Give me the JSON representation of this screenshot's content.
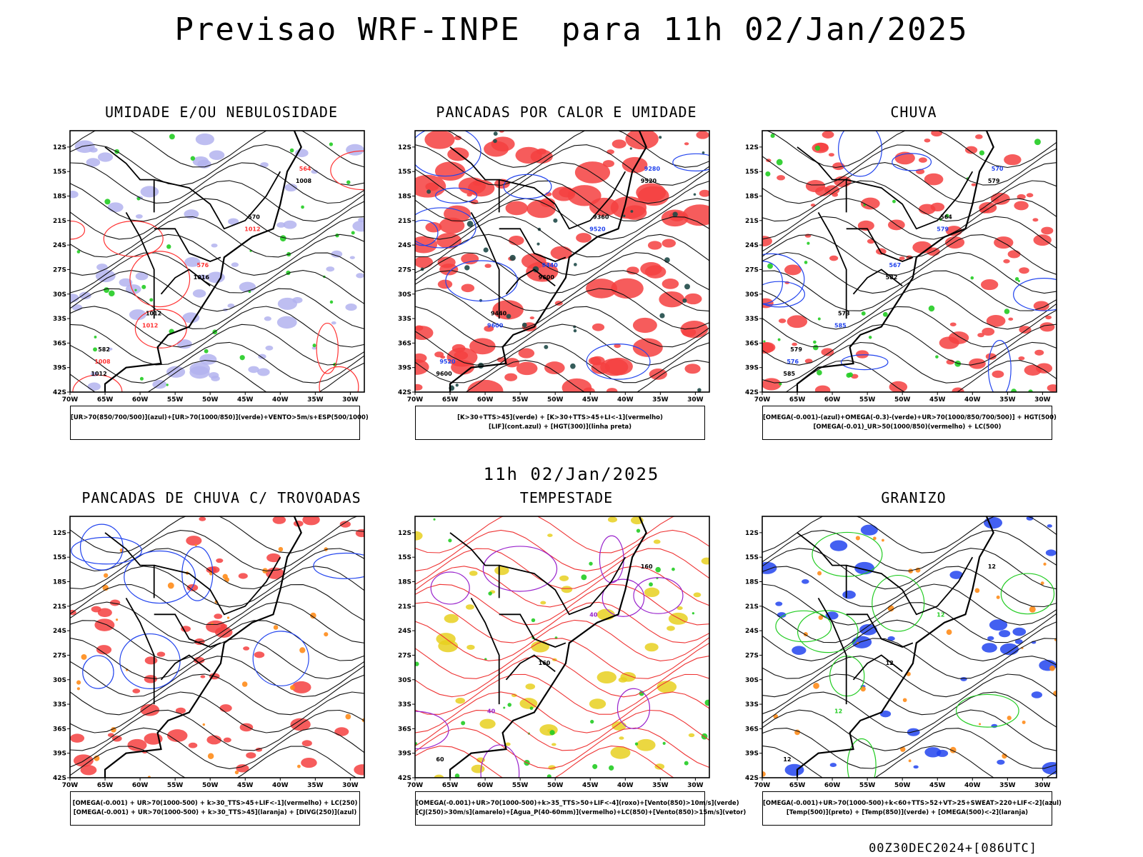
{
  "header": {
    "title": "Previsao WRF-INPE  para 11h 02/Jan/2025"
  },
  "middle": {
    "title": "11h 02/Jan/2025"
  },
  "footer": {
    "run_info": "00Z30DEC2024+[086UTC]"
  },
  "axes": {
    "lat_ticks": [
      "12S",
      "15S",
      "18S",
      "21S",
      "24S",
      "27S",
      "30S",
      "33S",
      "36S",
      "39S",
      "42S"
    ],
    "lon_ticks": [
      "70W",
      "65W",
      "60W",
      "55W",
      "50W",
      "45W",
      "40W",
      "35W",
      "30W"
    ]
  },
  "chart_data": [
    {
      "type": "map",
      "title": "UMIDADE E/OU NEBULOSIDADE",
      "xlim": [
        -70,
        -28
      ],
      "ylim": [
        -42,
        -10
      ],
      "legend": [
        "[UR>70(850/700/500)](azul)+[UR>70(1000/850)](verde)+VENTO>5m/s+ESP(500/1000)"
      ],
      "contour_labels": [
        "1012",
        "1012",
        "1016",
        "1012",
        "1008",
        "1008",
        "1012",
        "576",
        "570",
        "564",
        "582"
      ],
      "colors": {
        "fill": "#b3b3ee",
        "line_primary": "#111111",
        "line_secondary": "#ff3333",
        "accent": "#22cc22"
      }
    },
    {
      "type": "map",
      "title": "PANCADAS POR CALOR E UMIDADE",
      "xlim": [
        -70,
        -28
      ],
      "ylim": [
        -42,
        -10
      ],
      "legend": [
        "[K>30+TTS>45](verde) + [K>30+TTS>45+LI<-1](vermelho)",
        "[LIF](cont.azul) + [HGT(300)](linha preta)"
      ],
      "contour_labels": [
        "9600",
        "9600",
        "9600",
        "9520",
        "9520",
        "9520",
        "9440",
        "9440",
        "9360",
        "9280"
      ],
      "colors": {
        "fill": "#f44040",
        "line_primary": "#111111",
        "line_secondary": "#2244ee",
        "accent": "#1f4a48"
      }
    },
    {
      "type": "map",
      "title": "CHUVA",
      "xlim": [
        -70,
        -28
      ],
      "ylim": [
        -42,
        -10
      ],
      "legend": [
        "[OMEGA(-0.001)-(azul)+OMEGA(-0.3)-(verde)+UR>70(1000/850/700/500)] + HGT(500)",
        "[OMEGA(-0.01)_UR>50(1000/850)(vermelho) + LC(500)"
      ],
      "contour_labels": [
        "585",
        "585",
        "582",
        "579",
        "579",
        "576",
        "573",
        "567",
        "564",
        "570",
        "579"
      ],
      "colors": {
        "fill": "#f44040",
        "line_primary": "#111111",
        "line_secondary": "#2244ee",
        "accent": "#22cc22"
      }
    },
    {
      "type": "map",
      "title": "PANCADAS DE CHUVA C/ TROVOADAS",
      "xlim": [
        -70,
        -28
      ],
      "ylim": [
        -42,
        -10
      ],
      "legend": [
        "[OMEGA(-0.001) + UR>70(1000-500) + k>30_TTS>45+LIF<-1](vermelho) + LC(250)",
        "[OMEGA(-0.001) + UR>70(1000-500) + k>30_TTS>45](laranja) + [DIVG(250)](azul)"
      ],
      "contour_labels": [],
      "colors": {
        "fill": "#f44040",
        "line_primary": "#111111",
        "line_secondary": "#2244ee",
        "accent": "#ff8c1a"
      }
    },
    {
      "type": "map",
      "title": "TEMPESTADE",
      "xlim": [
        -70,
        -28
      ],
      "ylim": [
        -42,
        -10
      ],
      "legend": [
        "[OMEGA(-0.001)+UR>70(1000-500)+k>35_TTS>50+LIF<-4](roxo)+[Vento(850)>10m/s](verde)",
        "[CJ(250)>30m/s](amarelo)+[Agua_P(40-60mm)](vermelho)+LC(850)+[Vento(850)>15m/s](vetor)"
      ],
      "contour_labels": [
        "60",
        "40",
        "160",
        "40",
        "160"
      ],
      "colors": {
        "fill": "#e8d020",
        "line_primary": "#ee3333",
        "line_secondary": "#9922cc",
        "accent": "#22cc22"
      }
    },
    {
      "type": "map",
      "title": "GRANIZO",
      "xlim": [
        -70,
        -28
      ],
      "ylim": [
        -42,
        -10
      ],
      "legend": [
        "[OMEGA(-0.001)+UR>70(1000-500)+k<60+TTS>52+VT>25+SWEAT>220+LIF<-2](azul)",
        "[Temp(500)](preto) + [Temp(850)](verde) + [OMEGA(500)<-2](laranja)"
      ],
      "contour_labels": [
        "12",
        "12",
        "12",
        "12",
        "12"
      ],
      "colors": {
        "fill": "#2244ee",
        "line_primary": "#111111",
        "line_secondary": "#22cc22",
        "accent": "#ff8c1a"
      }
    }
  ]
}
